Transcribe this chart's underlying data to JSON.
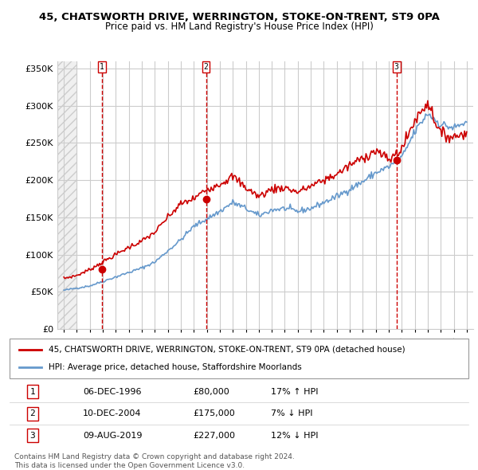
{
  "title_line1": "45, CHATSWORTH DRIVE, WERRINGTON, STOKE-ON-TRENT, ST9 0PA",
  "title_line2": "Price paid vs. HM Land Registry's House Price Index (HPI)",
  "ylim": [
    0,
    360000
  ],
  "yticks": [
    0,
    50000,
    100000,
    150000,
    200000,
    250000,
    300000,
    350000
  ],
  "ytick_labels": [
    "£0",
    "£50K",
    "£100K",
    "£150K",
    "£200K",
    "£250K",
    "£300K",
    "£350K"
  ],
  "xlim_start": 1993.5,
  "xlim_end": 2025.5,
  "hpi_color": "#6699cc",
  "price_color": "#cc0000",
  "marker_color": "#cc0000",
  "sale_dates": [
    1996.92,
    2004.94,
    2019.6
  ],
  "sale_prices": [
    80000,
    175000,
    227000
  ],
  "sale_labels": [
    "1",
    "2",
    "3"
  ],
  "vline_color": "#cc0000",
  "grid_color": "#cccccc",
  "legend_price_label": "45, CHATSWORTH DRIVE, WERRINGTON, STOKE-ON-TRENT, ST9 0PA (detached house)",
  "legend_hpi_label": "HPI: Average price, detached house, Staffordshire Moorlands",
  "table_entries": [
    {
      "num": "1",
      "date": "06-DEC-1996",
      "price": "£80,000",
      "hpi": "17% ↑ HPI"
    },
    {
      "num": "2",
      "date": "10-DEC-2004",
      "price": "£175,000",
      "hpi": "7% ↓ HPI"
    },
    {
      "num": "3",
      "date": "09-AUG-2019",
      "price": "£227,000",
      "hpi": "12% ↓ HPI"
    }
  ],
  "footnote": "Contains HM Land Registry data © Crown copyright and database right 2024.\nThis data is licensed under the Open Government Licence v3.0.",
  "hpi_data_years": [
    1994,
    1995,
    1996,
    1997,
    1998,
    1999,
    2000,
    2001,
    2002,
    2003,
    2004,
    2005,
    2006,
    2007,
    2008,
    2009,
    2010,
    2011,
    2012,
    2013,
    2014,
    2015,
    2016,
    2017,
    2018,
    2019,
    2020,
    2021,
    2022,
    2023,
    2024,
    2025
  ],
  "hpi_data_values": [
    52000,
    55000,
    58000,
    64000,
    70000,
    76000,
    82000,
    90000,
    105000,
    120000,
    138000,
    148000,
    158000,
    170000,
    162000,
    152000,
    160000,
    162000,
    158000,
    162000,
    170000,
    178000,
    188000,
    198000,
    210000,
    218000,
    230000,
    265000,
    290000,
    275000,
    270000,
    278000
  ],
  "price_data_years": [
    1994,
    1995,
    1996,
    1997,
    1998,
    1999,
    2000,
    2001,
    2002,
    2003,
    2004,
    2005,
    2006,
    2007,
    2008,
    2009,
    2010,
    2011,
    2012,
    2013,
    2014,
    2015,
    2016,
    2017,
    2018,
    2019,
    2020,
    2021,
    2022,
    2023,
    2024,
    2025
  ],
  "price_data_values": [
    68000,
    72000,
    80000,
    90000,
    100000,
    110000,
    118000,
    130000,
    150000,
    168000,
    175000,
    188000,
    195000,
    205000,
    190000,
    178000,
    188000,
    190000,
    184000,
    192000,
    200000,
    208000,
    220000,
    230000,
    240000,
    227000,
    242000,
    280000,
    305000,
    262000,
    258000,
    265000
  ]
}
